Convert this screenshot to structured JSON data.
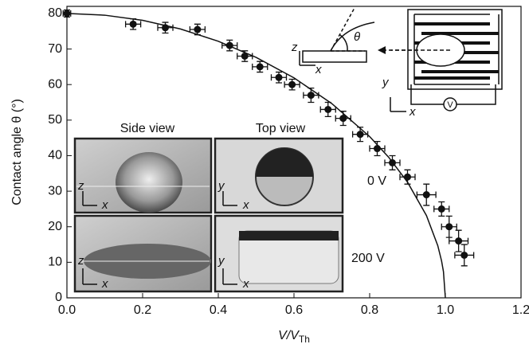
{
  "chart_data": {
    "type": "scatter",
    "x_label": {
      "main": "V/V",
      "sub": "Th"
    },
    "y_label": "Contact angle θ (°)",
    "xlim": [
      0,
      1.2
    ],
    "ylim": [
      0,
      82
    ],
    "xticks": [
      {
        "value": 0,
        "label": "0.0"
      },
      0.2,
      0.4,
      0.6,
      0.8,
      {
        "value": 1,
        "label": "1.0"
      },
      1.2
    ],
    "yticks": [
      0,
      10,
      20,
      30,
      40,
      50,
      60,
      70,
      80
    ],
    "series": [
      {
        "type": "scatter",
        "color": "#111111",
        "x": [
          0,
          0.175,
          0.26,
          0.345,
          0.43,
          0.47,
          0.51,
          0.56,
          0.595,
          0.645,
          0.69,
          0.73,
          0.775,
          0.82,
          0.86,
          0.9,
          0.95,
          0.99,
          1.01,
          1.035,
          1.05
        ],
        "values": [
          80,
          77,
          76,
          75.5,
          71,
          68,
          65,
          62,
          60,
          57,
          53,
          50.5,
          46,
          42,
          38,
          34,
          29,
          25,
          20,
          16,
          12
        ],
        "x_err": [
          0.01,
          0.02,
          0.02,
          0.02,
          0.02,
          0.02,
          0.02,
          0.02,
          0.02,
          0.02,
          0.02,
          0.02,
          0.02,
          0.02,
          0.02,
          0.02,
          0.025,
          0.02,
          0.02,
          0.025,
          0.025
        ],
        "y_err": [
          1,
          1.5,
          1.5,
          1.5,
          1.5,
          1.5,
          1.5,
          1.5,
          1.5,
          2,
          2,
          2,
          2,
          2,
          2,
          2,
          3,
          2,
          3,
          3,
          3
        ]
      },
      {
        "type": "line",
        "color": "#111111",
        "x": [
          0,
          0.1,
          0.2,
          0.3,
          0.4,
          0.5,
          0.6,
          0.7,
          0.8,
          0.85,
          0.9,
          0.95,
          0.98,
          0.99,
          0.995,
          1.0
        ],
        "values": [
          80,
          79.52,
          78.07,
          75.64,
          72.19,
          67.65,
          61.89,
          54.65,
          45.37,
          39.58,
          32.55,
          23.16,
          14.69,
          10.39,
          7.36,
          0
        ]
      }
    ],
    "annotations": [
      "Side view",
      "Top view",
      "0 V",
      "200 V",
      "z",
      "x",
      "y",
      "θ",
      "V"
    ]
  }
}
